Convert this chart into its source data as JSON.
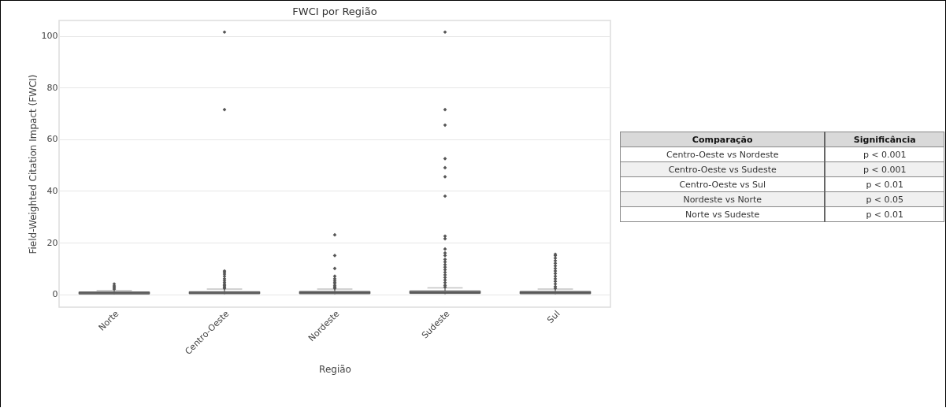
{
  "chart_data": {
    "type": "box",
    "title": "FWCI por Região",
    "xlabel": "Região",
    "ylabel": "Field-Weighted Citation Impact (FWCI)",
    "categories": [
      "Norte",
      "Centro-Oeste",
      "Nordeste",
      "Sudeste",
      "Sul"
    ],
    "color": "#7a7a7a",
    "boxes": [
      {
        "low": 0,
        "q1": 0.1,
        "median": 0.5,
        "q3": 0.9,
        "high": 1.5,
        "outliers": [
          2,
          2.6,
          3.2,
          4
        ]
      },
      {
        "low": 0,
        "q1": 0.2,
        "median": 0.5,
        "q3": 1.0,
        "high": 2.0,
        "outliers": [
          2.3,
          2.8,
          3.3,
          3.8,
          4.5,
          5.2,
          6,
          7,
          7.8,
          8.5,
          9,
          71.5,
          101.5
        ]
      },
      {
        "low": 0,
        "q1": 0.2,
        "median": 0.6,
        "q3": 1.1,
        "high": 2.0,
        "outliers": [
          2.3,
          2.8,
          3.3,
          4,
          4.6,
          5.2,
          6,
          7,
          10,
          15,
          23
        ]
      },
      {
        "low": 0,
        "q1": 0.3,
        "median": 0.7,
        "q3": 1.3,
        "high": 2.5,
        "outliers": [
          2.8,
          3.5,
          4.5,
          5.5,
          6.5,
          7.5,
          8.5,
          9.5,
          10.5,
          11.5,
          12.5,
          13.5,
          15,
          16,
          17.5,
          21.5,
          22.5,
          38,
          45.5,
          49,
          52.5,
          65.5,
          71.5,
          101.5
        ]
      },
      {
        "low": 0,
        "q1": 0.2,
        "median": 0.6,
        "q3": 1.1,
        "high": 2.0,
        "outliers": [
          2.3,
          3,
          4,
          5,
          6,
          7,
          8,
          9,
          10,
          11,
          12,
          13,
          14,
          15,
          15.5
        ]
      }
    ],
    "ylim": [
      -5,
      106
    ],
    "yticks": [
      0,
      20,
      40,
      60,
      80,
      100
    ],
    "grid": "y",
    "annotations": [
      "Comparação",
      "Significância",
      "Centro-Oeste vs Nordeste",
      "p < 0.001",
      "Centro-Oeste vs Sudeste",
      "p < 0.001",
      "Centro-Oeste vs Sul",
      "p < 0.01",
      "Nordeste vs Norte",
      "p < 0.05",
      "Norte vs Sudeste",
      "p < 0.01"
    ]
  }
}
